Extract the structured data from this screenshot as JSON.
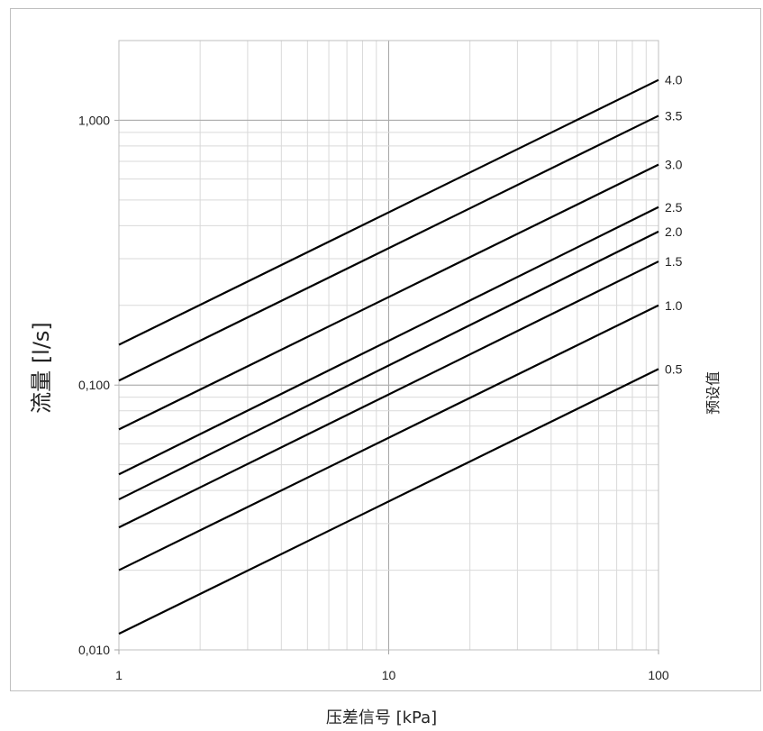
{
  "chart_data": {
    "type": "line",
    "x_scale": "log",
    "y_scale": "log",
    "xlabel": "压差信号 [kPa]",
    "ylabel": "流量 [l/s]",
    "legend_title": "预设值",
    "xlim": [
      1,
      100
    ],
    "ylim": [
      0.01,
      2
    ],
    "x_ticks": [
      1,
      10,
      100
    ],
    "x_tick_labels": [
      "1",
      "10",
      "100"
    ],
    "y_ticks": [
      0.01,
      0.1,
      1
    ],
    "y_tick_labels": [
      "0,010",
      "0,100",
      "1,000"
    ],
    "grid": true,
    "x": [
      1,
      100
    ],
    "series": [
      {
        "name": "0.5",
        "values": [
          0.0115,
          0.115
        ]
      },
      {
        "name": "1.0",
        "values": [
          0.02,
          0.2
        ]
      },
      {
        "name": "1.5",
        "values": [
          0.029,
          0.293
        ]
      },
      {
        "name": "2.0",
        "values": [
          0.037,
          0.38
        ]
      },
      {
        "name": "2.5",
        "values": [
          0.046,
          0.47
        ]
      },
      {
        "name": "3.0",
        "values": [
          0.068,
          0.68
        ]
      },
      {
        "name": "3.5",
        "values": [
          0.104,
          1.04
        ]
      },
      {
        "name": "4.0",
        "values": [
          0.142,
          1.42
        ]
      }
    ]
  }
}
